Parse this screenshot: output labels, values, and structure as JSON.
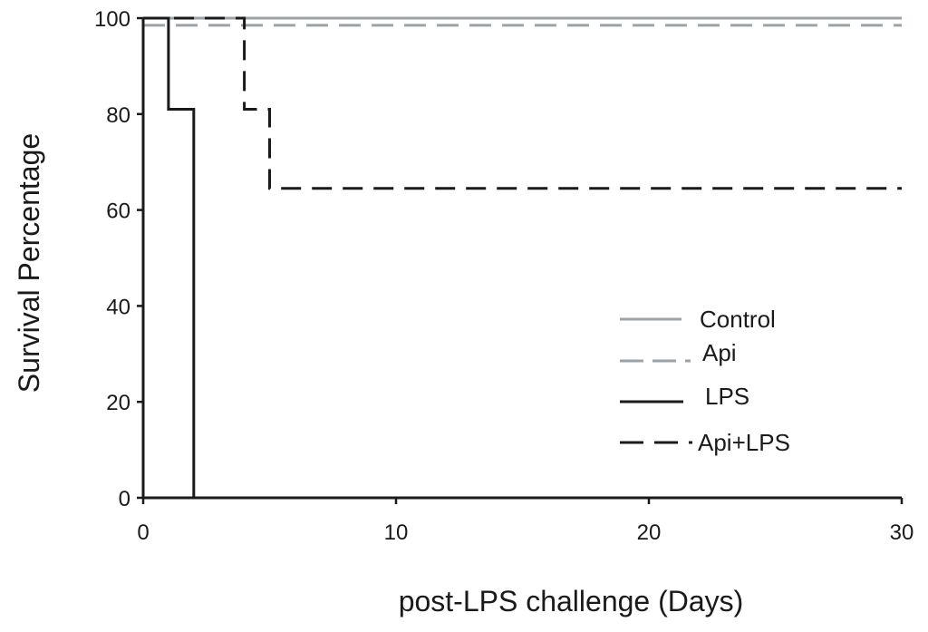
{
  "chart_data": {
    "type": "line",
    "title": "",
    "xlabel": "post-LPS challenge (Days)",
    "ylabel": "Survival Percentage",
    "xlim": [
      0,
      30
    ],
    "ylim": [
      0,
      100
    ],
    "x_ticks": [
      "0",
      "10",
      "20",
      "30"
    ],
    "y_ticks": [
      "0",
      "20",
      "40",
      "60",
      "80",
      "100"
    ],
    "step": true,
    "grid": false,
    "legend_position": "right",
    "series": [
      {
        "name": "Control",
        "color": "#9ba3a8",
        "dash": "solid",
        "points": [
          [
            0,
            100
          ],
          [
            30,
            100
          ]
        ]
      },
      {
        "name": "Api",
        "color": "#9ba3a8",
        "dash": "dashed",
        "points": [
          [
            0,
            98.5
          ],
          [
            30,
            98.5
          ]
        ]
      },
      {
        "name": "LPS",
        "color": "#1a1a1a",
        "dash": "solid",
        "points": [
          [
            0,
            100
          ],
          [
            1,
            81
          ],
          [
            2,
            0
          ]
        ]
      },
      {
        "name": "Api+LPS",
        "color": "#1a1a1a",
        "dash": "dashed",
        "points": [
          [
            0,
            100
          ],
          [
            4,
            81
          ],
          [
            5,
            64.5
          ],
          [
            30,
            64.5
          ]
        ]
      }
    ]
  }
}
